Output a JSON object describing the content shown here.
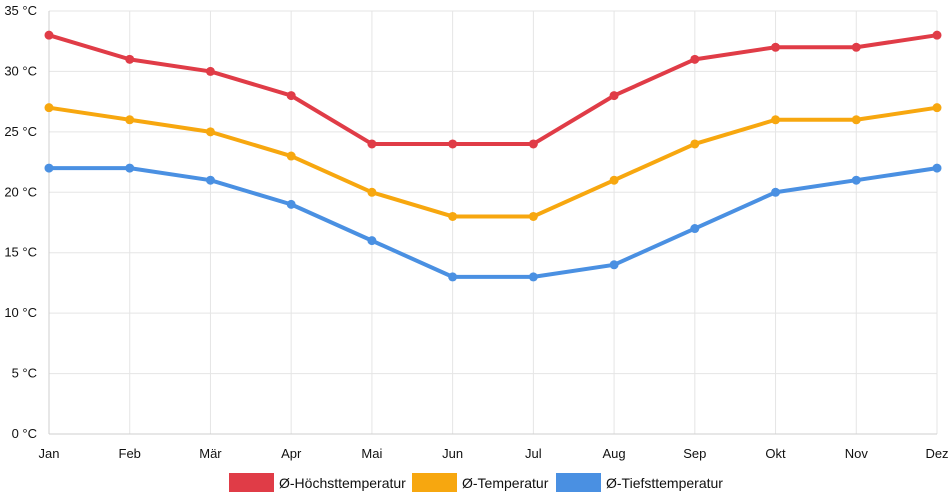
{
  "chart_data": {
    "type": "line",
    "categories": [
      "Jan",
      "Feb",
      "Mär",
      "Apr",
      "Mai",
      "Jun",
      "Jul",
      "Aug",
      "Sep",
      "Okt",
      "Nov",
      "Dez"
    ],
    "y_unit": "°C",
    "ylim": [
      0,
      35
    ],
    "y_ticks": [
      0,
      5,
      10,
      15,
      20,
      25,
      30,
      35
    ],
    "grid": true,
    "legend_position": "bottom",
    "series": [
      {
        "name": "Ø-Höchsttemperatur",
        "color": "#e03c47",
        "values": [
          33,
          31,
          30,
          28,
          24,
          24,
          24,
          28,
          31,
          32,
          32,
          33
        ]
      },
      {
        "name": "Ø-Temperatur",
        "color": "#f7a70f",
        "values": [
          27,
          26,
          25,
          23,
          20,
          18,
          18,
          21,
          24,
          26,
          26,
          27
        ]
      },
      {
        "name": "Ø-Tiefsttemperatur",
        "color": "#4a90e2",
        "values": [
          22,
          22,
          21,
          19,
          16,
          13,
          13,
          14,
          17,
          20,
          21,
          22
        ]
      }
    ]
  }
}
